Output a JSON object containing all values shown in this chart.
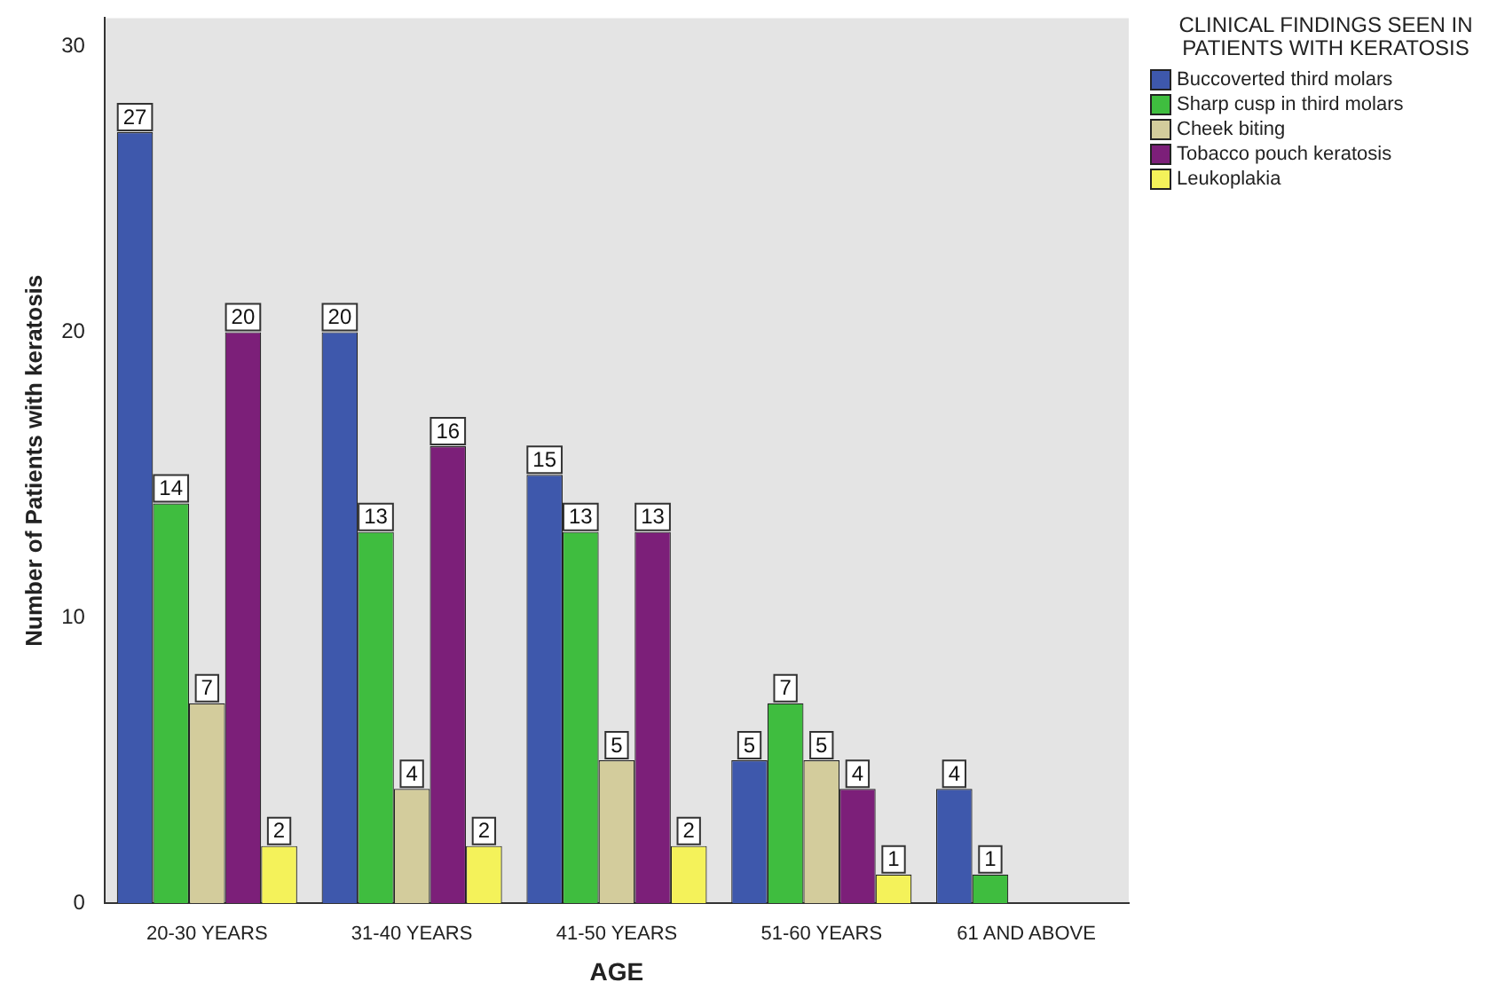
{
  "chart_data": {
    "type": "bar",
    "xlabel": "AGE",
    "ylabel": "Number of Patients with keratosis",
    "legend_title": "CLINICAL FINDINGS SEEN IN PATIENTS WITH KERATOSIS",
    "legend": "top right",
    "data_labels": true,
    "grid": false,
    "categories": [
      "20-30 YEARS",
      "31-40 YEARS",
      "41-50 YEARS",
      "51-60 YEARS",
      "61 AND ABOVE"
    ],
    "ylim": [
      0,
      31
    ],
    "yticks": [
      0,
      10,
      20,
      30
    ],
    "series": [
      {
        "name": "Buccoverted third molars",
        "color": "#3e58ac",
        "values": [
          27,
          20,
          15,
          5,
          4
        ]
      },
      {
        "name": "Sharp cusp in third molars",
        "color": "#3fbd3f",
        "values": [
          14,
          13,
          13,
          7,
          1
        ]
      },
      {
        "name": "Cheek biting",
        "color": "#d3cc9c",
        "values": [
          7,
          4,
          5,
          5,
          null
        ]
      },
      {
        "name": "Tobacco pouch keratosis",
        "color": "#7c1f79",
        "values": [
          20,
          16,
          13,
          4,
          null
        ]
      },
      {
        "name": "Leukoplakia",
        "color": "#f4f25a",
        "values": [
          2,
          2,
          2,
          1,
          null
        ]
      }
    ]
  }
}
